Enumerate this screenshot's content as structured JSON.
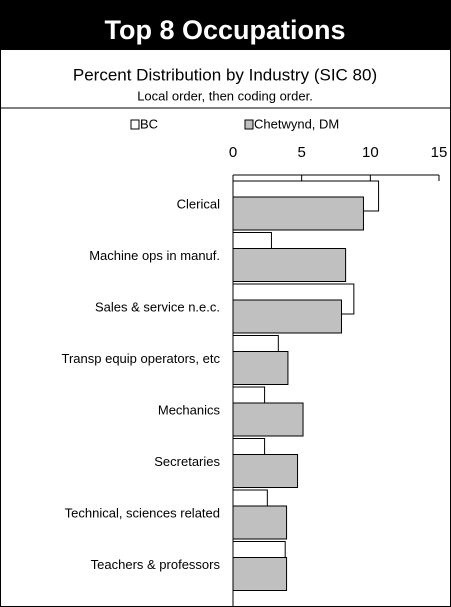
{
  "chart_data": {
    "type": "bar",
    "orientation": "horizontal",
    "title": "Top 8 Occupations",
    "subtitle": "Percent Distribution by Industry (SIC 80)",
    "note": "Local order, then coding order.",
    "categories": [
      "Clerical",
      "Machine ops in manuf.",
      "Sales & service  n.e.c.",
      "Transp equip operators, etc",
      "Mechanics",
      "Secretaries",
      "Technical, sciences related",
      "Teachers & professors"
    ],
    "series": [
      {
        "name": "BC",
        "color": "#ffffff",
        "values": [
          10.6,
          2.8,
          8.8,
          3.3,
          2.3,
          2.3,
          2.5,
          3.8
        ]
      },
      {
        "name": "Chetwynd, DM",
        "color": "#c0c0c0",
        "values": [
          9.5,
          8.2,
          7.9,
          4.0,
          5.1,
          4.7,
          3.9,
          3.9
        ]
      }
    ],
    "xlim": [
      0,
      15
    ],
    "xticks": [
      0,
      5,
      10,
      15
    ],
    "legend": "top"
  }
}
